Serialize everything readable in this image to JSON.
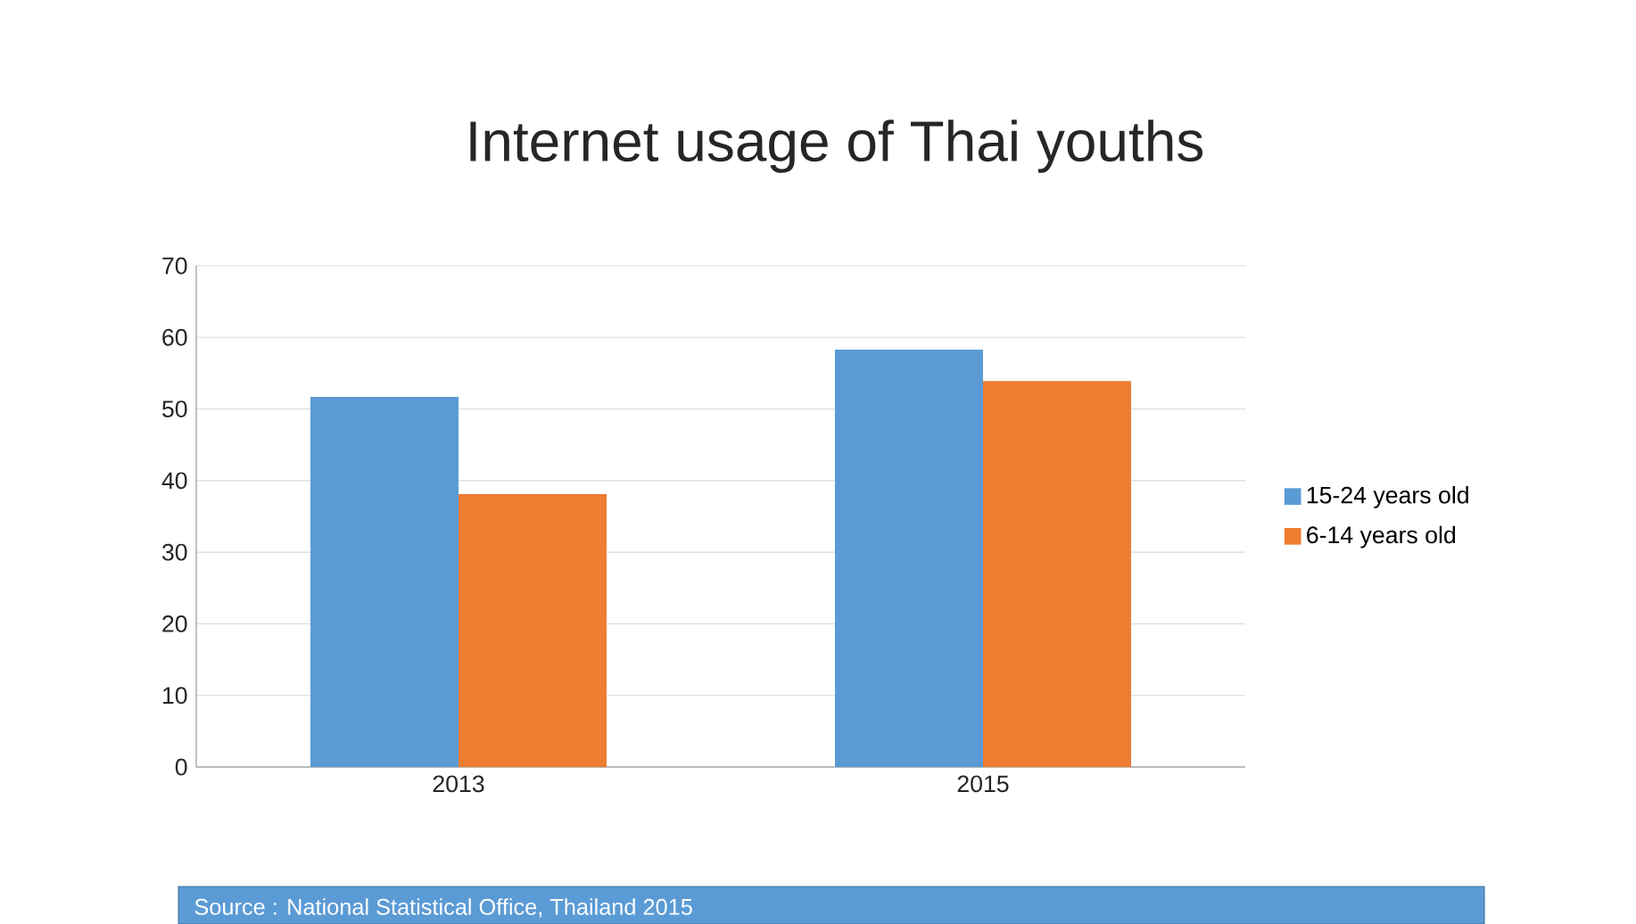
{
  "chart_data": {
    "type": "bar",
    "title": "Internet usage of Thai youths",
    "categories": [
      "2013",
      "2015"
    ],
    "series": [
      {
        "name": "15-24 years old",
        "color": "#5b9bd5",
        "values": [
          51.7,
          58.3
        ]
      },
      {
        "name": "6-14 years old",
        "color": "#ed7d31",
        "values": [
          38.1,
          53.9
        ]
      }
    ],
    "ylim": [
      0,
      70
    ],
    "yticks": [
      0,
      10,
      20,
      30,
      40,
      50,
      60,
      70
    ],
    "grid": "y",
    "legend": "right",
    "annotations": [
      "Source : National Statistical Office, Thailand 2015"
    ]
  }
}
